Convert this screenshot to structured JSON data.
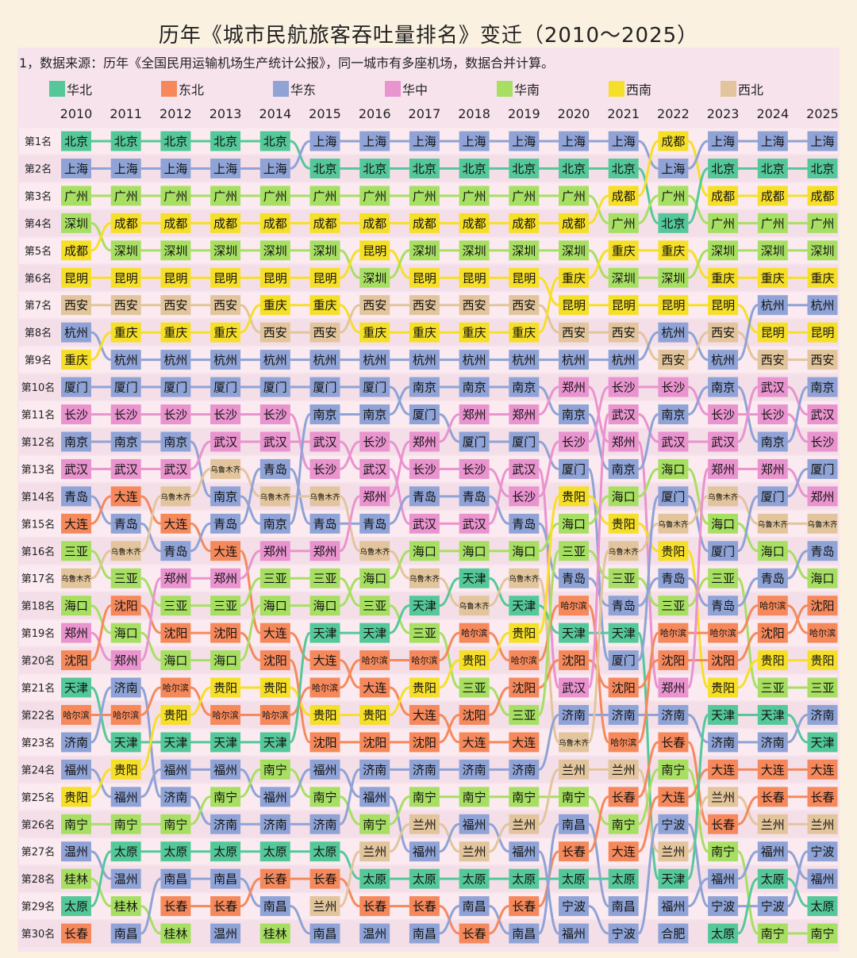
{
  "title": "历年《城市民航旅客吞吐量排名》变迁（2010～2025）",
  "note": "1，数据来源：历年《全国民用运输机场生产统计公报》，同一城市有多座机场，数据合并计算。",
  "regions": [
    {
      "name": "华北",
      "color": "#55c89a"
    },
    {
      "name": "东北",
      "color": "#f5895c"
    },
    {
      "name": "华东",
      "color": "#8fa3d6"
    },
    {
      "name": "华中",
      "color": "#e993cf"
    },
    {
      "name": "华南",
      "color": "#a7df62"
    },
    {
      "name": "西南",
      "color": "#f6df28"
    },
    {
      "name": "西北",
      "color": "#e2c59c"
    }
  ],
  "city_region": {
    "北京": 0,
    "天津": 0,
    "太原": 0,
    "沈阳": 1,
    "大连": 1,
    "哈尔滨": 1,
    "长春": 1,
    "上海": 2,
    "杭州": 2,
    "厦门": 2,
    "南京": 2,
    "青岛": 2,
    "济南": 2,
    "福州": 2,
    "温州": 2,
    "南昌": 2,
    "宁波": 2,
    "合肥": 2,
    "武汉": 3,
    "长沙": 3,
    "郑州": 3,
    "广州": 4,
    "深圳": 4,
    "三亚": 4,
    "海口": 4,
    "南宁": 4,
    "桂林": 4,
    "成都": 5,
    "昆明": 5,
    "重庆": 5,
    "贵阳": 5,
    "西安": 6,
    "乌鲁木齐": 6,
    "兰州": 6
  },
  "rank_labels": [
    "第1名",
    "第2名",
    "第3名",
    "第4名",
    "第5名",
    "第6名",
    "第7名",
    "第8名",
    "第9名",
    "第10名",
    "第11名",
    "第12名",
    "第13名",
    "第14名",
    "第15名",
    "第16名",
    "第17名",
    "第18名",
    "第19名",
    "第20名",
    "第21名",
    "第22名",
    "第23名",
    "第24名",
    "第25名",
    "第26名",
    "第27名",
    "第28名",
    "第29名",
    "第30名"
  ],
  "chart_data": {
    "type": "table",
    "x": [
      "2010",
      "2011",
      "2012",
      "2013",
      "2014",
      "2015",
      "2016",
      "2017",
      "2018",
      "2019",
      "2020",
      "2021",
      "2022",
      "2023",
      "2024",
      "2025"
    ],
    "rankings": [
      [
        "北京",
        "上海",
        "广州",
        "深圳",
        "成都",
        "昆明",
        "西安",
        "杭州",
        "重庆",
        "厦门",
        "长沙",
        "南京",
        "武汉",
        "青岛",
        "大连",
        "三亚",
        "乌鲁木齐",
        "海口",
        "郑州",
        "沈阳",
        "天津",
        "哈尔滨",
        "济南",
        "福州",
        "贵阳",
        "南宁",
        "温州",
        "桂林",
        "太原",
        "长春"
      ],
      [
        "北京",
        "上海",
        "广州",
        "成都",
        "深圳",
        "昆明",
        "西安",
        "重庆",
        "杭州",
        "厦门",
        "长沙",
        "南京",
        "武汉",
        "大连",
        "青岛",
        "乌鲁木齐",
        "三亚",
        "沈阳",
        "海口",
        "郑州",
        "济南",
        "哈尔滨",
        "天津",
        "贵阳",
        "福州",
        "南宁",
        "太原",
        "温州",
        "桂林",
        "南昌"
      ],
      [
        "北京",
        "上海",
        "广州",
        "成都",
        "深圳",
        "昆明",
        "西安",
        "重庆",
        "杭州",
        "厦门",
        "长沙",
        "南京",
        "武汉",
        "乌鲁木齐",
        "大连",
        "青岛",
        "郑州",
        "三亚",
        "沈阳",
        "海口",
        "哈尔滨",
        "贵阳",
        "天津",
        "福州",
        "济南",
        "南宁",
        "太原",
        "南昌",
        "长春",
        "桂林"
      ],
      [
        "北京",
        "上海",
        "广州",
        "成都",
        "深圳",
        "昆明",
        "西安",
        "重庆",
        "杭州",
        "厦门",
        "长沙",
        "武汉",
        "乌鲁木齐",
        "南京",
        "青岛",
        "大连",
        "郑州",
        "三亚",
        "沈阳",
        "海口",
        "贵阳",
        "哈尔滨",
        "天津",
        "福州",
        "南宁",
        "济南",
        "太原",
        "南昌",
        "长春",
        "温州"
      ],
      [
        "北京",
        "上海",
        "广州",
        "成都",
        "深圳",
        "昆明",
        "重庆",
        "西安",
        "杭州",
        "厦门",
        "长沙",
        "武汉",
        "青岛",
        "乌鲁木齐",
        "南京",
        "郑州",
        "三亚",
        "海口",
        "大连",
        "沈阳",
        "贵阳",
        "哈尔滨",
        "天津",
        "南宁",
        "福州",
        "济南",
        "太原",
        "长春",
        "南昌",
        "桂林"
      ],
      [
        "上海",
        "北京",
        "广州",
        "成都",
        "深圳",
        "昆明",
        "重庆",
        "西安",
        "杭州",
        "厦门",
        "南京",
        "武汉",
        "长沙",
        "乌鲁木齐",
        "青岛",
        "郑州",
        "三亚",
        "海口",
        "天津",
        "大连",
        "哈尔滨",
        "贵阳",
        "沈阳",
        "福州",
        "南宁",
        "济南",
        "太原",
        "长春",
        "兰州",
        "南昌"
      ],
      [
        "上海",
        "北京",
        "广州",
        "成都",
        "昆明",
        "深圳",
        "西安",
        "重庆",
        "杭州",
        "厦门",
        "南京",
        "长沙",
        "武汉",
        "郑州",
        "青岛",
        "乌鲁木齐",
        "海口",
        "三亚",
        "天津",
        "哈尔滨",
        "大连",
        "贵阳",
        "沈阳",
        "济南",
        "福州",
        "南宁",
        "兰州",
        "太原",
        "长春",
        "温州"
      ],
      [
        "上海",
        "北京",
        "广州",
        "成都",
        "深圳",
        "昆明",
        "西安",
        "重庆",
        "杭州",
        "南京",
        "厦门",
        "郑州",
        "长沙",
        "青岛",
        "武汉",
        "海口",
        "乌鲁木齐",
        "天津",
        "三亚",
        "哈尔滨",
        "贵阳",
        "大连",
        "沈阳",
        "济南",
        "南宁",
        "兰州",
        "福州",
        "太原",
        "长春",
        "南昌"
      ],
      [
        "上海",
        "北京",
        "广州",
        "成都",
        "深圳",
        "昆明",
        "西安",
        "重庆",
        "杭州",
        "南京",
        "郑州",
        "厦门",
        "长沙",
        "青岛",
        "武汉",
        "海口",
        "天津",
        "乌鲁木齐",
        "哈尔滨",
        "贵阳",
        "三亚",
        "沈阳",
        "大连",
        "济南",
        "南宁",
        "福州",
        "兰州",
        "太原",
        "南昌",
        "长春"
      ],
      [
        "上海",
        "北京",
        "广州",
        "成都",
        "深圳",
        "昆明",
        "西安",
        "重庆",
        "杭州",
        "南京",
        "郑州",
        "厦门",
        "武汉",
        "长沙",
        "青岛",
        "海口",
        "乌鲁木齐",
        "天津",
        "贵阳",
        "哈尔滨",
        "沈阳",
        "三亚",
        "大连",
        "济南",
        "南宁",
        "兰州",
        "福州",
        "太原",
        "长春",
        "南昌"
      ],
      [
        "上海",
        "北京",
        "广州",
        "成都",
        "深圳",
        "重庆",
        "昆明",
        "西安",
        "杭州",
        "郑州",
        "南京",
        "长沙",
        "厦门",
        "贵阳",
        "海口",
        "三亚",
        "青岛",
        "哈尔滨",
        "天津",
        "沈阳",
        "武汉",
        "济南",
        "乌鲁木齐",
        "兰州",
        "南宁",
        "南昌",
        "长春",
        "太原",
        "宁波",
        "福州"
      ],
      [
        "上海",
        "北京",
        "成都",
        "广州",
        "重庆",
        "深圳",
        "昆明",
        "西安",
        "杭州",
        "长沙",
        "武汉",
        "郑州",
        "南京",
        "海口",
        "贵阳",
        "乌鲁木齐",
        "三亚",
        "青岛",
        "天津",
        "厦门",
        "沈阳",
        "济南",
        "哈尔滨",
        "兰州",
        "长春",
        "南宁",
        "大连",
        "太原",
        "南昌",
        "宁波"
      ],
      [
        "成都",
        "上海",
        "广州",
        "北京",
        "重庆",
        "深圳",
        "昆明",
        "杭州",
        "西安",
        "长沙",
        "南京",
        "武汉",
        "海口",
        "厦门",
        "乌鲁木齐",
        "贵阳",
        "青岛",
        "三亚",
        "哈尔滨",
        "沈阳",
        "郑州",
        "济南",
        "长春",
        "南宁",
        "大连",
        "宁波",
        "兰州",
        "天津",
        "福州",
        "合肥"
      ],
      [
        "上海",
        "北京",
        "成都",
        "广州",
        "深圳",
        "重庆",
        "昆明",
        "西安",
        "杭州",
        "南京",
        "长沙",
        "武汉",
        "郑州",
        "乌鲁木齐",
        "海口",
        "厦门",
        "三亚",
        "青岛",
        "哈尔滨",
        "沈阳",
        "贵阳",
        "天津",
        "济南",
        "大连",
        "兰州",
        "长春",
        "南宁",
        "福州",
        "宁波",
        "太原"
      ],
      [
        "上海",
        "北京",
        "成都",
        "广州",
        "深圳",
        "重庆",
        "杭州",
        "昆明",
        "西安",
        "武汉",
        "长沙",
        "南京",
        "郑州",
        "厦门",
        "乌鲁木齐",
        "海口",
        "青岛",
        "哈尔滨",
        "沈阳",
        "贵阳",
        "三亚",
        "天津",
        "济南",
        "大连",
        "长春",
        "兰州",
        "福州",
        "太原",
        "宁波",
        "南宁"
      ],
      [
        "上海",
        "北京",
        "成都",
        "广州",
        "深圳",
        "重庆",
        "杭州",
        "昆明",
        "西安",
        "南京",
        "武汉",
        "长沙",
        "厦门",
        "郑州",
        "乌鲁木齐",
        "青岛",
        "海口",
        "沈阳",
        "哈尔滨",
        "贵阳",
        "三亚",
        "济南",
        "天津",
        "大连",
        "长春",
        "兰州",
        "宁波",
        "福州",
        "太原",
        "南宁"
      ]
    ]
  }
}
